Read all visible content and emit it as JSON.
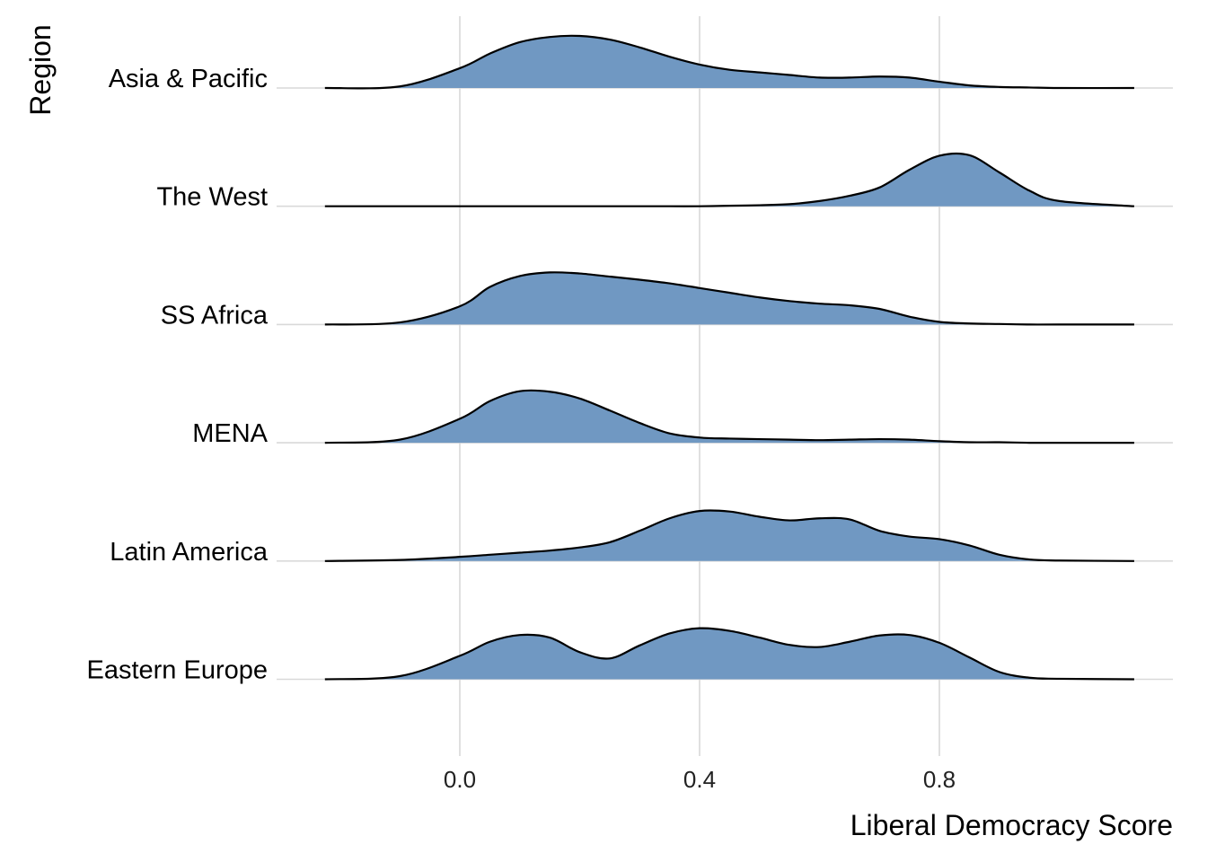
{
  "chart_data": {
    "type": "ridgeline",
    "title": "",
    "xlabel": "Liberal Democracy Score",
    "ylabel": "Region",
    "xlim": [
      -0.225,
      1.125
    ],
    "x_ticks": [
      "0.0",
      "0.4",
      "0.8"
    ],
    "x_tick_values": [
      0.0,
      0.4,
      0.8
    ],
    "grid": true,
    "fill_color": "#7098C2",
    "line_color": "#000000",
    "x": [
      -0.225,
      -0.1,
      0.0,
      0.05,
      0.1,
      0.15,
      0.2,
      0.25,
      0.3,
      0.35,
      0.4,
      0.45,
      0.5,
      0.55,
      0.6,
      0.65,
      0.7,
      0.75,
      0.8,
      0.85,
      0.9,
      0.95,
      1.0,
      1.125
    ],
    "series": [
      {
        "name": "Asia & Pacific",
        "density": [
          0.0,
          0.03,
          0.38,
          0.66,
          0.88,
          0.98,
          1.0,
          0.93,
          0.78,
          0.6,
          0.45,
          0.35,
          0.3,
          0.25,
          0.2,
          0.2,
          0.22,
          0.2,
          0.12,
          0.05,
          0.02,
          0.01,
          0.0,
          0.0
        ]
      },
      {
        "name": "The West",
        "density": [
          0.0,
          0.0,
          0.0,
          0.0,
          0.0,
          0.0,
          0.0,
          0.0,
          0.0,
          0.0,
          0.0,
          0.01,
          0.02,
          0.04,
          0.1,
          0.2,
          0.36,
          0.7,
          0.97,
          0.98,
          0.65,
          0.3,
          0.1,
          0.0
        ]
      },
      {
        "name": "SS Africa",
        "density": [
          0.0,
          0.04,
          0.35,
          0.72,
          0.93,
          1.0,
          0.98,
          0.92,
          0.86,
          0.79,
          0.7,
          0.61,
          0.52,
          0.45,
          0.4,
          0.37,
          0.3,
          0.15,
          0.05,
          0.02,
          0.01,
          0.0,
          0.0,
          0.0
        ]
      },
      {
        "name": "MENA",
        "density": [
          0.0,
          0.06,
          0.46,
          0.8,
          0.99,
          0.98,
          0.85,
          0.62,
          0.38,
          0.18,
          0.1,
          0.08,
          0.07,
          0.06,
          0.05,
          0.06,
          0.07,
          0.06,
          0.03,
          0.01,
          0.01,
          0.0,
          0.0,
          0.0
        ]
      },
      {
        "name": "Latin America",
        "density": [
          0.0,
          0.02,
          0.08,
          0.12,
          0.16,
          0.2,
          0.26,
          0.36,
          0.58,
          0.82,
          0.96,
          0.95,
          0.85,
          0.78,
          0.82,
          0.8,
          0.58,
          0.47,
          0.42,
          0.3,
          0.12,
          0.03,
          0.01,
          0.0
        ]
      },
      {
        "name": "Eastern Europe",
        "density": [
          0.0,
          0.06,
          0.45,
          0.72,
          0.85,
          0.8,
          0.52,
          0.4,
          0.65,
          0.88,
          0.98,
          0.93,
          0.8,
          0.66,
          0.62,
          0.72,
          0.84,
          0.85,
          0.7,
          0.42,
          0.14,
          0.03,
          0.01,
          0.0
        ]
      }
    ]
  }
}
